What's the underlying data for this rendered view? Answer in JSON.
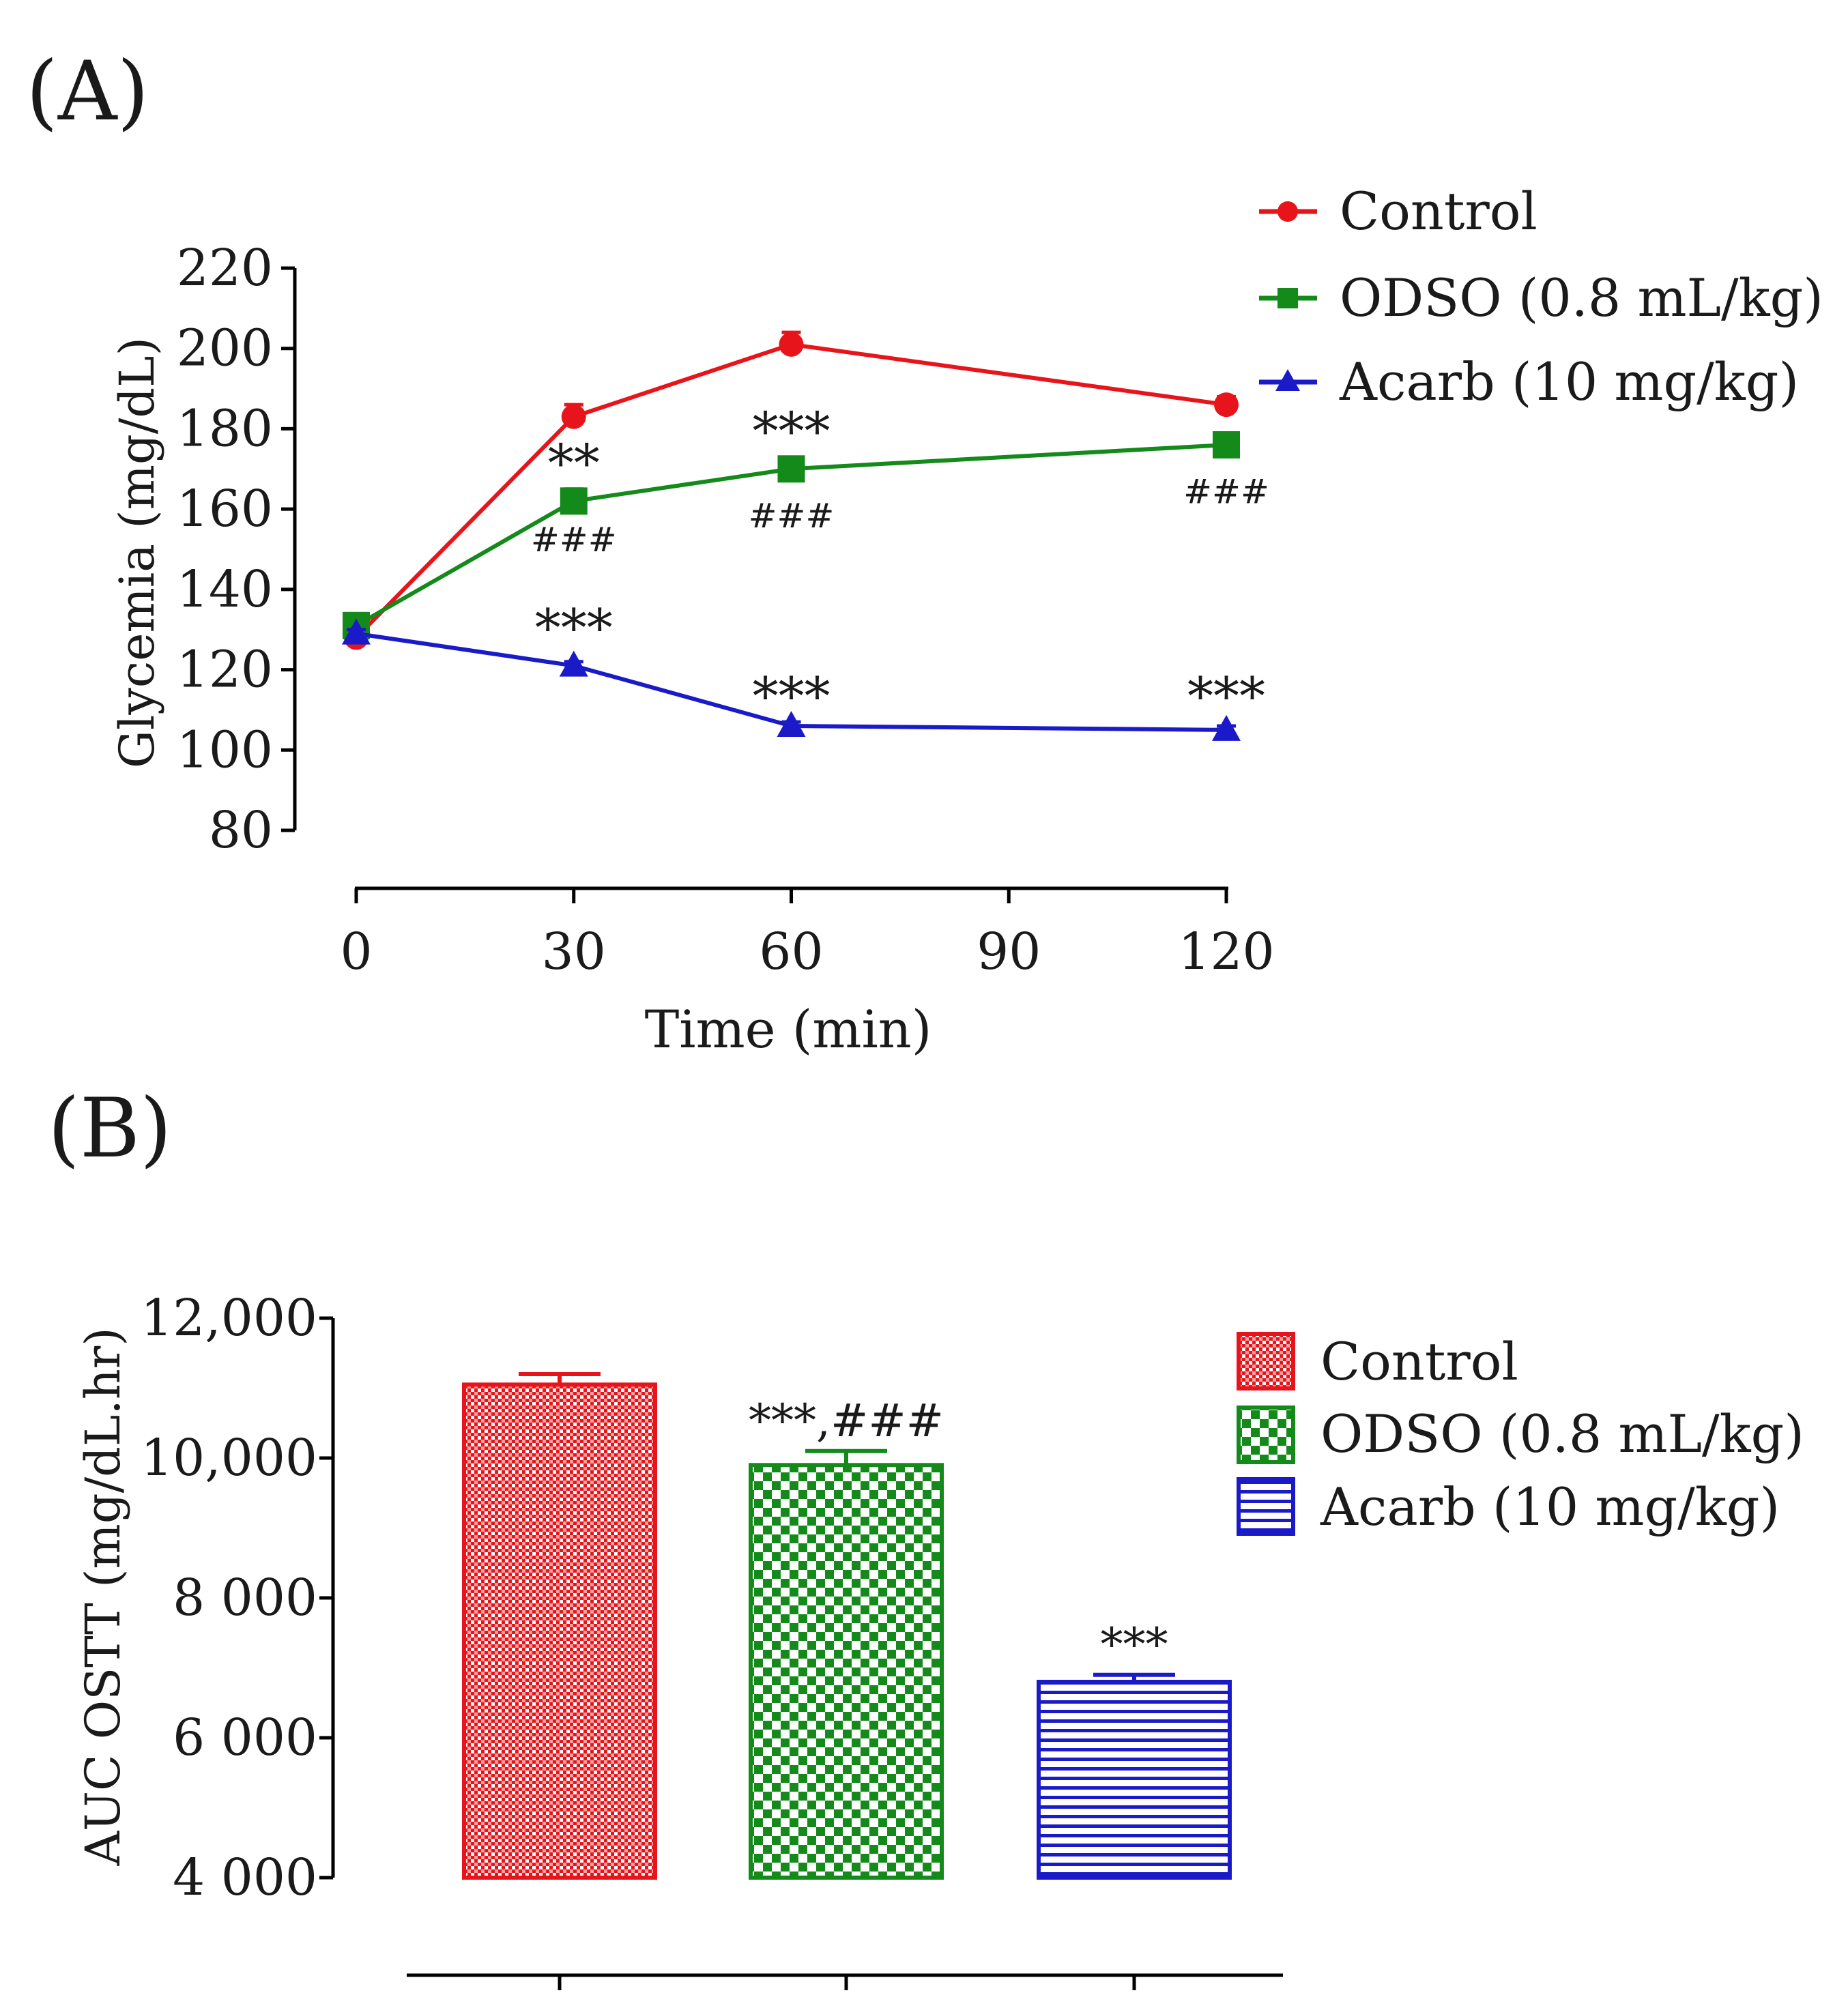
{
  "chart_data": [
    {
      "panel_label": "(A)",
      "type": "line",
      "xlabel": "Time (min)",
      "ylabel": "Glycemia (mg/dL)",
      "xlim": [
        0,
        120
      ],
      "ylim": [
        80,
        220
      ],
      "xticks": [
        0,
        30,
        60,
        90,
        120
      ],
      "yticks": [
        80,
        100,
        120,
        140,
        160,
        180,
        200,
        220
      ],
      "x": [
        0,
        30,
        60,
        120
      ],
      "series": [
        {
          "name": "Control",
          "color": "#e8141b",
          "marker": "circle",
          "values": [
            128,
            183,
            201,
            186
          ],
          "errors": [
            1.5,
            3,
            3,
            2
          ]
        },
        {
          "name": "ODSO (0.8 mL/kg)",
          "color": "#138a1a",
          "marker": "square",
          "values": [
            131,
            162,
            170,
            176
          ],
          "errors": [
            1.5,
            3,
            2,
            2
          ]
        },
        {
          "name": "Acarb (10 mg/kg)",
          "color": "#1a1ac8",
          "marker": "triangle",
          "values": [
            129,
            121,
            106,
            105
          ],
          "errors": [
            1,
            1,
            1,
            1
          ]
        }
      ],
      "annotations": [
        {
          "text": "**",
          "x": 30,
          "y": 172,
          "size": "large"
        },
        {
          "text": "###",
          "x": 30,
          "y": 152,
          "size": "small"
        },
        {
          "text": "***",
          "x": 60,
          "y": 180,
          "size": "large"
        },
        {
          "text": "###",
          "x": 60,
          "y": 158,
          "size": "small"
        },
        {
          "text": "###",
          "x": 120,
          "y": 164,
          "size": "small"
        },
        {
          "text": "***",
          "x": 30,
          "y": 131,
          "size": "large"
        },
        {
          "text": "***",
          "x": 60,
          "y": 114,
          "size": "large"
        },
        {
          "text": "***",
          "x": 120,
          "y": 114,
          "size": "large"
        }
      ]
    },
    {
      "panel_label": "(B)",
      "type": "bar",
      "ylabel": "AUC OSTT (mg/dL.hr)",
      "ylim": [
        4000,
        12000
      ],
      "yticks": [
        4000,
        6000,
        8000,
        10000,
        12000
      ],
      "ytick_labels": [
        "4 000",
        "6 000",
        "8 000",
        "10,000",
        "12,000"
      ],
      "categories": [
        "Control",
        "ODSO (0.8 mL/kg)",
        "Acarb (10 mg/kg)"
      ],
      "values": [
        11050,
        9900,
        6800
      ],
      "errors": [
        150,
        200,
        100
      ],
      "colors": [
        "#e8141b",
        "#138a1a",
        "#1a1ac8"
      ],
      "patterns": [
        "dots",
        "checker",
        "hlines"
      ],
      "annotations": [
        {
          "category": 1,
          "text": "***,###"
        },
        {
          "category": 2,
          "text": "***"
        }
      ]
    }
  ]
}
